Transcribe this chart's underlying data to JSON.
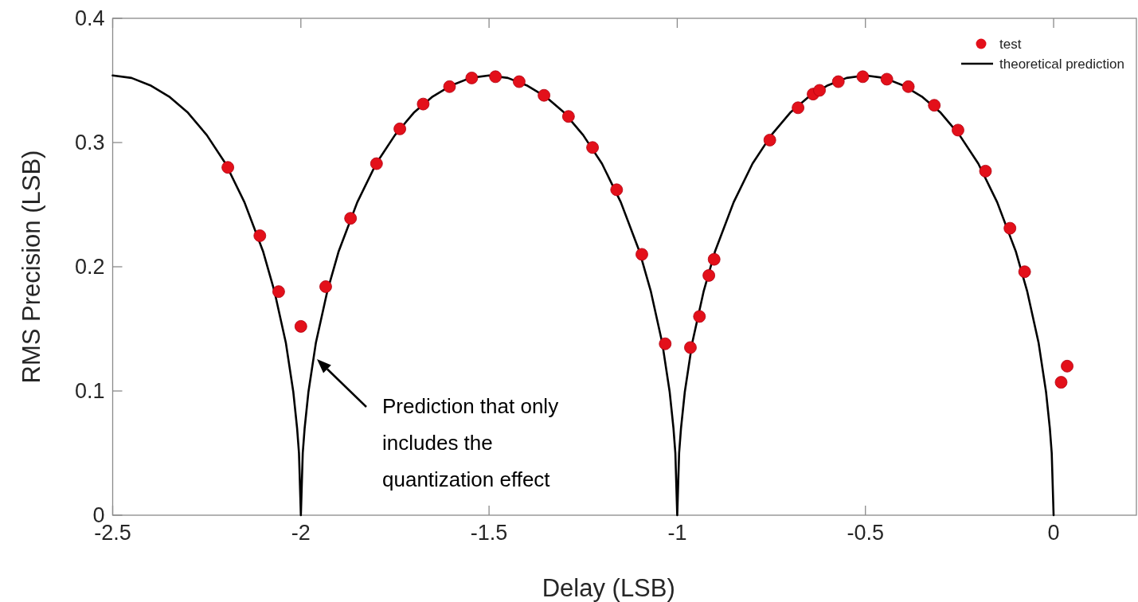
{
  "chart_data": {
    "type": "scatter",
    "xlabel": "Delay (LSB)",
    "ylabel": "RMS Precision (LSB)",
    "xlim": [
      -2.5,
      0.22
    ],
    "xticks": [
      -2.5,
      -2,
      -1.5,
      -1,
      -0.5,
      0
    ],
    "ylim": [
      0,
      0.4
    ],
    "yticks": [
      0,
      0.1,
      0.2,
      0.3,
      0.4
    ],
    "grid": false,
    "legend": "top right",
    "annotations": [
      "Prediction that only includes the quantization effect"
    ],
    "series": [
      {
        "name": "test",
        "marker": "circle",
        "color": "#e3101a",
        "x": [
          -2.194,
          -2.109,
          -2.059,
          -2.0,
          -1.934,
          -1.868,
          -1.799,
          -1.737,
          -1.675,
          -1.605,
          -1.546,
          -1.483,
          -1.42,
          -1.354,
          -1.289,
          -1.225,
          -1.161,
          -1.094,
          -1.032,
          -0.965,
          -0.941,
          -0.916,
          -0.902,
          -0.754,
          -0.679,
          -0.639,
          -0.622,
          -0.572,
          -0.507,
          -0.443,
          -0.386,
          -0.317,
          -0.254,
          -0.181,
          -0.116,
          -0.077,
          0.02,
          0.036
        ],
        "values": [
          0.28,
          0.225,
          0.18,
          0.152,
          0.184,
          0.239,
          0.283,
          0.311,
          0.331,
          0.345,
          0.352,
          0.353,
          0.349,
          0.338,
          0.321,
          0.296,
          0.262,
          0.21,
          0.138,
          0.135,
          0.16,
          0.193,
          0.206,
          0.302,
          0.328,
          0.339,
          0.342,
          0.349,
          0.353,
          0.351,
          0.345,
          0.33,
          0.31,
          0.277,
          0.231,
          0.196,
          0.107,
          0.12
        ]
      },
      {
        "name": "theoretical prediction",
        "type": "line",
        "line_style": "solid",
        "marker": "none",
        "color": "#000000",
        "x": [
          -2.5,
          -2.45,
          -2.4,
          -2.35,
          -2.3,
          -2.25,
          -2.2,
          -2.15,
          -2.1,
          -2.07,
          -2.04,
          -2.02,
          -2.01,
          -2.005,
          -2,
          -1.995,
          -1.99,
          -1.98,
          -1.96,
          -1.93,
          -1.9,
          -1.85,
          -1.8,
          -1.75,
          -1.7,
          -1.65,
          -1.6,
          -1.55,
          -1.5,
          -1.45,
          -1.4,
          -1.35,
          -1.3,
          -1.25,
          -1.2,
          -1.15,
          -1.1,
          -1.07,
          -1.04,
          -1.02,
          -1.01,
          -1.005,
          -1,
          -0.995,
          -0.99,
          -0.98,
          -0.96,
          -0.93,
          -0.9,
          -0.85,
          -0.8,
          -0.75,
          -0.7,
          -0.65,
          -0.6,
          -0.55,
          -0.5,
          -0.45,
          -0.4,
          -0.35,
          -0.3,
          -0.25,
          -0.2,
          -0.15,
          -0.1,
          -0.07,
          -0.04,
          -0.02,
          -0.01,
          -0.005,
          0
        ],
        "values": [
          0.354,
          0.352,
          0.346,
          0.337,
          0.324,
          0.306,
          0.283,
          0.252,
          0.212,
          0.18,
          0.139,
          0.099,
          0.07,
          0.05,
          0,
          0.05,
          0.07,
          0.099,
          0.139,
          0.18,
          0.212,
          0.252,
          0.283,
          0.306,
          0.324,
          0.337,
          0.346,
          0.352,
          0.354,
          0.352,
          0.346,
          0.337,
          0.324,
          0.306,
          0.283,
          0.252,
          0.212,
          0.18,
          0.139,
          0.099,
          0.07,
          0.05,
          0,
          0.05,
          0.07,
          0.099,
          0.139,
          0.18,
          0.212,
          0.252,
          0.283,
          0.306,
          0.324,
          0.337,
          0.346,
          0.352,
          0.354,
          0.352,
          0.346,
          0.337,
          0.324,
          0.306,
          0.283,
          0.252,
          0.212,
          0.18,
          0.139,
          0.099,
          0.07,
          0.05,
          0
        ]
      }
    ]
  }
}
